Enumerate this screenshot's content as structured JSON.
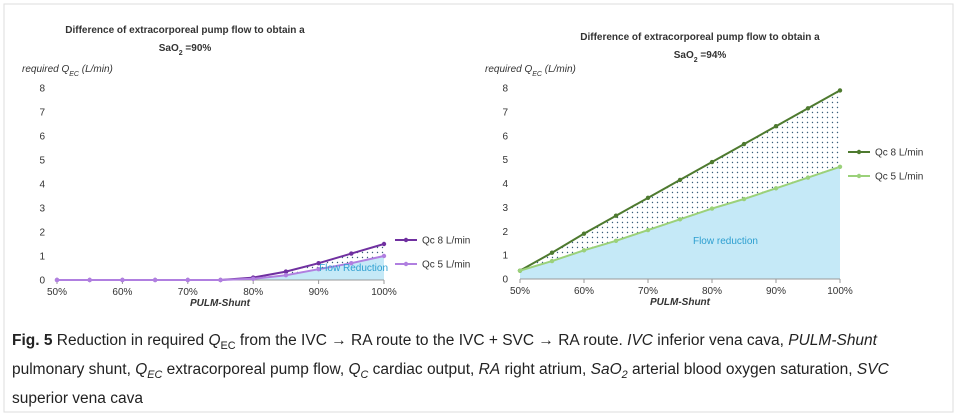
{
  "chart_data": [
    {
      "type": "line",
      "title_lines": [
        [
          {
            "text": "Difference of extracorporeal pump flow to obtain a",
            "style": "bold"
          }
        ],
        [
          {
            "text": "SaO",
            "style": "bold"
          },
          {
            "text": "2",
            "style": "bold-sub"
          },
          {
            "text": " =90%",
            "style": "bold"
          }
        ]
      ],
      "y_label": [
        {
          "text": "required Q",
          "style": "italic"
        },
        {
          "text": "EC",
          "style": "italic-sub"
        },
        {
          "text": " (L/min)",
          "style": "italic"
        }
      ],
      "x_label": "PULM-Shunt",
      "annotation": "Flow Reduction",
      "x": [
        50,
        55,
        60,
        65,
        70,
        75,
        80,
        85,
        90,
        95,
        100
      ],
      "xlim": [
        50,
        100
      ],
      "xticks": [
        {
          "value": 50,
          "label": "50%"
        },
        {
          "value": 60,
          "label": "60%"
        },
        {
          "value": 70,
          "label": "70%"
        },
        {
          "value": 80,
          "label": "80%"
        },
        {
          "value": 90,
          "label": "90%"
        },
        {
          "value": 100,
          "label": "100%"
        }
      ],
      "ylim": [
        0,
        8
      ],
      "yticks": [
        0,
        1,
        2,
        3,
        4,
        5,
        6,
        7,
        8
      ],
      "grid": false,
      "legend": "right",
      "series": [
        {
          "name": "Qc 8 L/min",
          "color": "#7030a0",
          "values": [
            0,
            0,
            0,
            0,
            0,
            0,
            0.1,
            0.35,
            0.7,
            1.1,
            1.5
          ]
        },
        {
          "name": "Qc 5 L/min",
          "color": "#b07fe0",
          "values": [
            0,
            0,
            0,
            0,
            0,
            0,
            0.05,
            0.2,
            0.45,
            0.7,
            1.0
          ]
        }
      ]
    },
    {
      "type": "line",
      "title_lines": [
        [
          {
            "text": "Difference of extracorporeal pump flow to obtain a",
            "style": "bold"
          }
        ],
        [
          {
            "text": "SaO",
            "style": "bold"
          },
          {
            "text": "2",
            "style": "bold-sub"
          },
          {
            "text": " =94%",
            "style": "bold"
          }
        ]
      ],
      "y_label": [
        {
          "text": "required Q",
          "style": "italic"
        },
        {
          "text": "EC",
          "style": "italic-sub"
        },
        {
          "text": " (L/min)",
          "style": "italic"
        }
      ],
      "x_label": "PULM-Shunt",
      "annotation": "Flow reduction",
      "x": [
        50,
        55,
        60,
        65,
        70,
        75,
        80,
        85,
        90,
        95,
        100
      ],
      "xlim": [
        50,
        100
      ],
      "xticks": [
        {
          "value": 50,
          "label": "50%"
        },
        {
          "value": 60,
          "label": "60%"
        },
        {
          "value": 70,
          "label": "70%"
        },
        {
          "value": 80,
          "label": "80%"
        },
        {
          "value": 90,
          "label": "90%"
        },
        {
          "value": 100,
          "label": "100%"
        }
      ],
      "ylim": [
        0,
        8
      ],
      "yticks": [
        0,
        1,
        2,
        3,
        4,
        5,
        6,
        7,
        8
      ],
      "grid": false,
      "legend": "right",
      "series": [
        {
          "name": "Qc 8 L/min",
          "color": "#4e7a2f",
          "values": [
            0.35,
            1.1,
            1.9,
            2.65,
            3.4,
            4.15,
            4.9,
            5.65,
            6.4,
            7.15,
            7.9
          ]
        },
        {
          "name": "Qc 5 L/min",
          "color": "#9bd17a",
          "values": [
            0.35,
            0.75,
            1.2,
            1.6,
            2.05,
            2.5,
            2.95,
            3.35,
            3.8,
            4.25,
            4.7
          ]
        }
      ]
    }
  ],
  "caption": [
    {
      "text": "Fig. 5",
      "style": "bold"
    },
    {
      "text": " Reduction in required ",
      "style": "normal"
    },
    {
      "text": "Q",
      "style": "italic"
    },
    {
      "text": "EC",
      "style": "sub"
    },
    {
      "text": " from the IVC → RA route to the IVC + SVC → RA route. ",
      "style": "normal"
    },
    {
      "text": "IVC",
      "style": "italic"
    },
    {
      "text": " inferior vena cava, ",
      "style": "normal"
    },
    {
      "text": "PULM-Shunt",
      "style": "italic"
    },
    {
      "text": " pulmonary shunt, ",
      "style": "normal"
    },
    {
      "text": "Q",
      "style": "italic"
    },
    {
      "text": "EC",
      "style": "italic-sub"
    },
    {
      "text": " extracorporeal pump flow, ",
      "style": "normal"
    },
    {
      "text": "Q",
      "style": "italic"
    },
    {
      "text": "C",
      "style": "italic-sub"
    },
    {
      "text": " cardiac output, ",
      "style": "normal"
    },
    {
      "text": "RA",
      "style": "italic"
    },
    {
      "text": " right atrium, ",
      "style": "normal"
    },
    {
      "text": "SaO",
      "style": "italic"
    },
    {
      "text": "2",
      "style": "italic-sub"
    },
    {
      "text": " arterial blood oxygen saturation, ",
      "style": "normal"
    },
    {
      "text": "SVC",
      "style": "italic"
    },
    {
      "text": " superior vena cava",
      "style": "normal"
    }
  ]
}
